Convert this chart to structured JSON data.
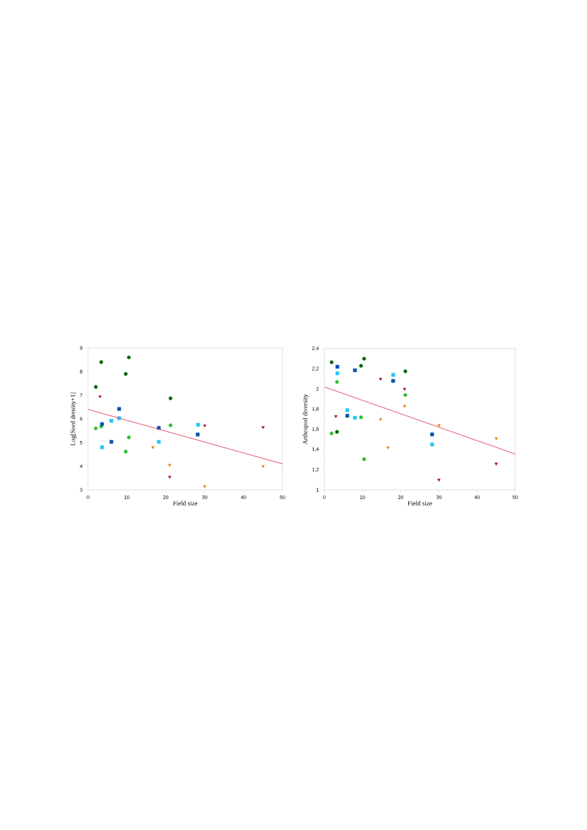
{
  "chart_data": [
    {
      "type": "scatter",
      "xlabel": "Field size",
      "ylabel": "Log[Seed density+1]",
      "xlim": [
        0,
        50
      ],
      "ylim": [
        3,
        9
      ],
      "xticks": [
        0,
        10,
        20,
        30,
        40,
        50
      ],
      "yticks": [
        3,
        4,
        5,
        6,
        7,
        8,
        9
      ],
      "grid": false,
      "series": [
        {
          "color": "#006400",
          "marker": "circle",
          "x": [
            2,
            3.4,
            9.7,
            10.5,
            21.2
          ],
          "values": [
            7.35,
            8.4,
            7.9,
            8.6,
            6.87
          ]
        },
        {
          "color": "#2ebd2e",
          "marker": "circle",
          "x": [
            2,
            3.4,
            9.7,
            10.5,
            21.2
          ],
          "values": [
            5.6,
            5.68,
            4.62,
            5.22,
            5.73
          ]
        },
        {
          "color": "#0050b4",
          "marker": "square",
          "x": [
            3.6,
            6,
            8,
            18.2,
            28.2
          ],
          "values": [
            5.78,
            5.03,
            6.42,
            5.62,
            5.34
          ]
        },
        {
          "color": "#1ec8f5",
          "marker": "square",
          "x": [
            3.6,
            6,
            8,
            18.2,
            28.3
          ],
          "values": [
            4.8,
            5.92,
            6.03,
            5.03,
            5.75
          ]
        },
        {
          "color": "#a0102a",
          "marker": "triangle",
          "x": [
            3.1,
            21,
            30,
            45
          ],
          "values": [
            6.95,
            3.55,
            5.72,
            5.65
          ]
        },
        {
          "color": "#f07d0a",
          "marker": "triangle",
          "x": [
            16.7,
            21,
            30,
            45
          ],
          "values": [
            4.8,
            4.05,
            3.15,
            4.0
          ]
        },
        {
          "type": "line",
          "color": "#e0405a",
          "marker": "none",
          "x": [
            0,
            50
          ],
          "values": [
            6.4,
            4.1
          ]
        }
      ]
    },
    {
      "type": "scatter",
      "xlabel": "Field size",
      "ylabel": "Arthropod diversity",
      "xlim": [
        0,
        50
      ],
      "ylim": [
        1,
        2.4
      ],
      "xticks": [
        0,
        10,
        20,
        30,
        40,
        50
      ],
      "yticks": [
        1,
        {
          "value": 1.2,
          "label": "1,2"
        },
        {
          "value": 1.4,
          "label": "1,4"
        },
        {
          "value": 1.6,
          "label": "1,6"
        },
        {
          "value": 1.8,
          "label": "1,8"
        },
        2,
        {
          "value": 2.2,
          "label": "2,2"
        },
        {
          "value": 2.4,
          "label": "2,4"
        }
      ],
      "grid": false,
      "series": [
        {
          "color": "#006400",
          "marker": "circle",
          "x": [
            1.9,
            3.3,
            9.6,
            10.4,
            21.2
          ],
          "values": [
            2.265,
            1.575,
            2.23,
            2.3,
            2.175
          ]
        },
        {
          "color": "#2ebd2e",
          "marker": "circle",
          "x": [
            1.9,
            3.3,
            9.6,
            10.4,
            21.2
          ],
          "values": [
            1.56,
            2.07,
            1.72,
            1.305,
            1.94
          ]
        },
        {
          "color": "#0050b4",
          "marker": "square",
          "x": [
            3.4,
            6,
            8,
            18,
            28.2
          ],
          "values": [
            2.22,
            1.735,
            2.185,
            2.08,
            1.55
          ]
        },
        {
          "color": "#1ec8f5",
          "marker": "square",
          "x": [
            3.4,
            6,
            8,
            18,
            28.2
          ],
          "values": [
            2.155,
            1.79,
            1.715,
            2.14,
            1.45
          ]
        },
        {
          "color": "#a0102a",
          "marker": "triangle",
          "x": [
            3,
            14.7,
            21,
            30,
            45
          ],
          "values": [
            1.73,
            2.1,
            2.0,
            1.1,
            1.26
          ]
        },
        {
          "color": "#f07d0a",
          "marker": "triangle",
          "x": [
            14.7,
            16.7,
            21,
            30,
            45
          ],
          "values": [
            1.7,
            1.42,
            1.83,
            1.64,
            1.51
          ]
        },
        {
          "type": "line",
          "color": "#e0405a",
          "marker": "none",
          "x": [
            0,
            50
          ],
          "values": [
            2.02,
            1.355
          ]
        }
      ]
    }
  ]
}
